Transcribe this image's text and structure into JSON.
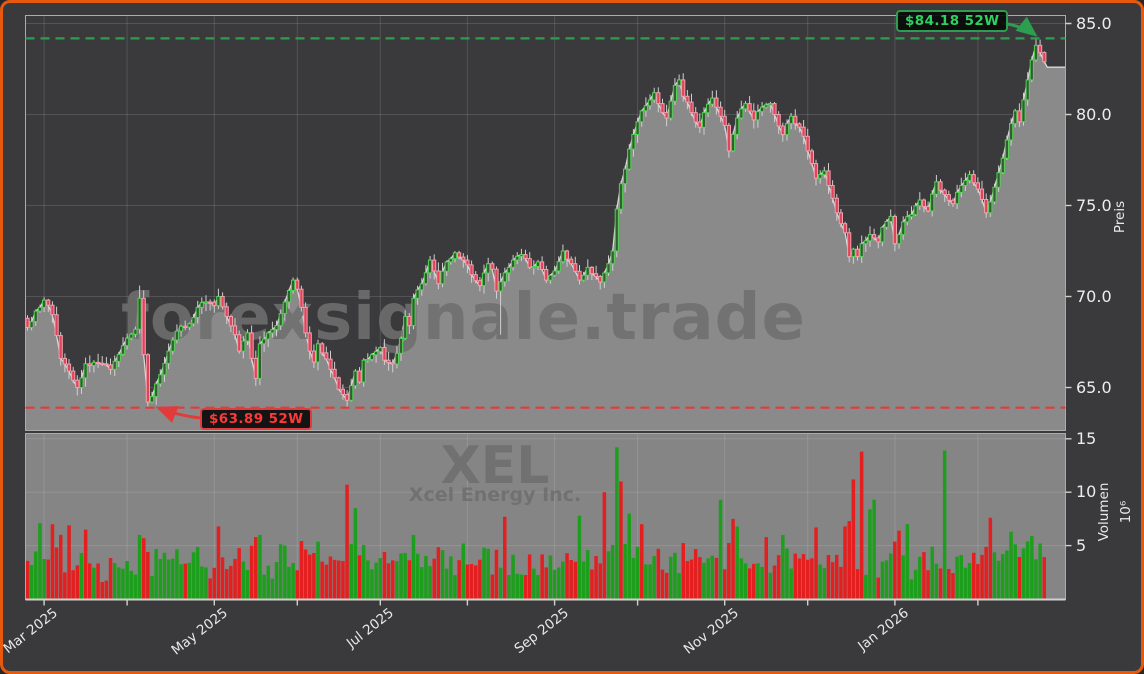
{
  "watermarks": {
    "site": "forexsignale.trade",
    "symbol": "XEL",
    "company": "Xcel Energy Inc."
  },
  "annotations": {
    "high": {
      "label": "$84.18 52W",
      "price": 84.18
    },
    "low": {
      "label": "$63.89 52W",
      "price": 63.89
    }
  },
  "axes": {
    "price": {
      "title": "Preis",
      "ticks": [
        65,
        70,
        75,
        80,
        85
      ],
      "tick_labels": [
        "65.0",
        "70.0",
        "75.0",
        "80.0",
        "85.0"
      ],
      "range": [
        62.6,
        85.4
      ]
    },
    "volume": {
      "title": "Volumen",
      "unit": "10⁶",
      "ticks": [
        5,
        10,
        15
      ],
      "tick_labels": [
        "5",
        "10",
        "15"
      ],
      "range": [
        0,
        15.5
      ]
    },
    "x": {
      "months": [
        {
          "day": 4,
          "label": "Mar 2025"
        },
        {
          "day": 24,
          "label": ""
        },
        {
          "day": 45,
          "label": "May 2025"
        },
        {
          "day": 65,
          "label": ""
        },
        {
          "day": 85,
          "label": "Jul 2025"
        },
        {
          "day": 106,
          "label": ""
        },
        {
          "day": 127,
          "label": "Sep 2025"
        },
        {
          "day": 147,
          "label": ""
        },
        {
          "day": 168,
          "label": "Nov 2025"
        },
        {
          "day": 188,
          "label": ""
        },
        {
          "day": 209,
          "label": "Jan 2026"
        },
        {
          "day": 229,
          "label": ""
        }
      ]
    }
  },
  "chart_data": {
    "type": "candlestick+volume",
    "title": "",
    "n_days": 246,
    "first_open": 68.8,
    "week52_high": 84.18,
    "week52_low": 63.89,
    "tail_price": 82.6,
    "close_anchors": [
      [
        0,
        68.3
      ],
      [
        2,
        69.2
      ],
      [
        4,
        69.8
      ],
      [
        6,
        69.0
      ],
      [
        8,
        66.6
      ],
      [
        10,
        65.9
      ],
      [
        12,
        65.0
      ],
      [
        14,
        66.3
      ],
      [
        18,
        66.3
      ],
      [
        20,
        66.0
      ],
      [
        23,
        67.3
      ],
      [
        26,
        68.2
      ],
      [
        27,
        69.9
      ],
      [
        28,
        66.8
      ],
      [
        29,
        64.2
      ],
      [
        30,
        64.5
      ],
      [
        32,
        65.7
      ],
      [
        34,
        67.0
      ],
      [
        36,
        68.1
      ],
      [
        39,
        68.5
      ],
      [
        41,
        69.4
      ],
      [
        43,
        69.7
      ],
      [
        45,
        69.5
      ],
      [
        46,
        70.0
      ],
      [
        48,
        68.9
      ],
      [
        50,
        67.9
      ],
      [
        51,
        67.0
      ],
      [
        53,
        68.0
      ],
      [
        54,
        66.6
      ],
      [
        55,
        65.5
      ],
      [
        56,
        67.4
      ],
      [
        58,
        68.0
      ],
      [
        60,
        68.4
      ],
      [
        62,
        69.7
      ],
      [
        64,
        70.9
      ],
      [
        65,
        70.4
      ],
      [
        66,
        69.4
      ],
      [
        67,
        68.0
      ],
      [
        68,
        67.0
      ],
      [
        69,
        66.4
      ],
      [
        70,
        67.4
      ],
      [
        71,
        66.9
      ],
      [
        73,
        66.0
      ],
      [
        75,
        64.9
      ],
      [
        77,
        64.3
      ],
      [
        78,
        65.1
      ],
      [
        79,
        65.9
      ],
      [
        80,
        65.3
      ],
      [
        81,
        66.5
      ],
      [
        83,
        66.8
      ],
      [
        85,
        67.2
      ],
      [
        86,
        66.5
      ],
      [
        88,
        66.3
      ],
      [
        90,
        67.7
      ],
      [
        91,
        68.9
      ],
      [
        92,
        68.4
      ],
      [
        93,
        69.9
      ],
      [
        95,
        70.7
      ],
      [
        96,
        71.3
      ],
      [
        97,
        72.0
      ],
      [
        98,
        71.4
      ],
      [
        99,
        70.7
      ],
      [
        101,
        71.9
      ],
      [
        103,
        72.4
      ],
      [
        105,
        72.0
      ],
      [
        107,
        71.2
      ],
      [
        109,
        70.6
      ],
      [
        111,
        71.8
      ],
      [
        112,
        71.5
      ],
      [
        113,
        70.3
      ],
      [
        115,
        71.3
      ],
      [
        117,
        72.0
      ],
      [
        119,
        72.3
      ],
      [
        121,
        71.6
      ],
      [
        123,
        71.9
      ],
      [
        125,
        70.9
      ],
      [
        127,
        71.4
      ],
      [
        129,
        72.5
      ],
      [
        131,
        71.8
      ],
      [
        133,
        70.9
      ],
      [
        135,
        71.6
      ],
      [
        137,
        71.1
      ],
      [
        138,
        70.8
      ],
      [
        140,
        71.8
      ],
      [
        141,
        72.5
      ],
      [
        142,
        74.8
      ],
      [
        143,
        76.2
      ],
      [
        144,
        77.0
      ],
      [
        145,
        78.1
      ],
      [
        146,
        78.9
      ],
      [
        147,
        79.6
      ],
      [
        148,
        80.2
      ],
      [
        150,
        80.8
      ],
      [
        151,
        81.2
      ],
      [
        152,
        80.6
      ],
      [
        154,
        79.8
      ],
      [
        156,
        81.6
      ],
      [
        157,
        81.9
      ],
      [
        158,
        81.0
      ],
      [
        160,
        80.1
      ],
      [
        162,
        79.3
      ],
      [
        163,
        80.1
      ],
      [
        165,
        80.9
      ],
      [
        166,
        80.4
      ],
      [
        168,
        79.4
      ],
      [
        169,
        78.0
      ],
      [
        171,
        79.8
      ],
      [
        173,
        80.6
      ],
      [
        175,
        79.7
      ],
      [
        177,
        80.4
      ],
      [
        179,
        80.6
      ],
      [
        180,
        80.0
      ],
      [
        182,
        78.9
      ],
      [
        184,
        79.9
      ],
      [
        186,
        79.3
      ],
      [
        187,
        78.8
      ],
      [
        188,
        78.0
      ],
      [
        189,
        77.3
      ],
      [
        190,
        76.5
      ],
      [
        192,
        76.9
      ],
      [
        193,
        76.1
      ],
      [
        194,
        75.4
      ],
      [
        195,
        74.6
      ],
      [
        196,
        74.0
      ],
      [
        197,
        73.5
      ],
      [
        198,
        72.2
      ],
      [
        199,
        72.6
      ],
      [
        200,
        72.2
      ],
      [
        201,
        72.9
      ],
      [
        203,
        73.4
      ],
      [
        205,
        73.0
      ],
      [
        206,
        73.8
      ],
      [
        208,
        74.4
      ],
      [
        209,
        72.9
      ],
      [
        210,
        73.4
      ],
      [
        211,
        74.1
      ],
      [
        213,
        74.5
      ],
      [
        215,
        75.3
      ],
      [
        217,
        74.7
      ],
      [
        219,
        76.3
      ],
      [
        221,
        75.6
      ],
      [
        223,
        75.1
      ],
      [
        225,
        76.1
      ],
      [
        227,
        76.7
      ],
      [
        229,
        75.9
      ],
      [
        231,
        74.6
      ],
      [
        232,
        75.2
      ],
      [
        233,
        76.0
      ],
      [
        234,
        76.8
      ],
      [
        235,
        77.6
      ],
      [
        236,
        78.6
      ],
      [
        237,
        79.5
      ],
      [
        238,
        80.2
      ],
      [
        239,
        79.6
      ],
      [
        240,
        80.8
      ],
      [
        241,
        81.9
      ],
      [
        242,
        83.0
      ],
      [
        243,
        83.8
      ],
      [
        244,
        83.4
      ],
      [
        245,
        82.9
      ]
    ],
    "low_wicks": [
      [
        29,
        63.89
      ],
      [
        114,
        67.9
      ]
    ],
    "high_wicks": [
      [
        27,
        70.6
      ],
      [
        243,
        84.18
      ]
    ],
    "volume_spikes": [
      [
        3,
        7.1,
        "g"
      ],
      [
        6,
        7.0,
        "r"
      ],
      [
        10,
        6.9,
        "r"
      ],
      [
        14,
        6.5,
        "r"
      ],
      [
        46,
        6.8,
        "r"
      ],
      [
        55,
        5.8,
        "r"
      ],
      [
        77,
        10.7,
        "r"
      ],
      [
        79,
        8.5,
        "g"
      ],
      [
        105,
        5.2,
        "g"
      ],
      [
        115,
        7.7,
        "r"
      ],
      [
        133,
        7.8,
        "g"
      ],
      [
        139,
        10.0,
        "r"
      ],
      [
        142,
        14.2,
        "g"
      ],
      [
        143,
        11.0,
        "r"
      ],
      [
        145,
        8.0,
        "g"
      ],
      [
        148,
        7.0,
        "r"
      ],
      [
        167,
        9.3,
        "g"
      ],
      [
        170,
        7.5,
        "r"
      ],
      [
        171,
        6.8,
        "g"
      ],
      [
        178,
        5.8,
        "r"
      ],
      [
        182,
        6.0,
        "g"
      ],
      [
        190,
        6.7,
        "r"
      ],
      [
        197,
        6.8,
        "r"
      ],
      [
        198,
        7.3,
        "r"
      ],
      [
        199,
        11.2,
        "r"
      ],
      [
        201,
        13.8,
        "r"
      ],
      [
        203,
        8.4,
        "g"
      ],
      [
        204,
        9.3,
        "g"
      ],
      [
        210,
        6.4,
        "r"
      ],
      [
        212,
        7.0,
        "g"
      ],
      [
        221,
        13.9,
        "g"
      ],
      [
        232,
        7.6,
        "r"
      ],
      [
        237,
        6.3,
        "g"
      ],
      [
        241,
        5.4,
        "g"
      ],
      [
        244,
        5.2,
        "g"
      ]
    ]
  },
  "colors": {
    "frame_border": "#e8590c",
    "background": "#3a3a3c",
    "panel_gray": "#858585",
    "area_fill": "#8a8a8a",
    "area_line": "#d9d9d9",
    "grid": "rgba(255,255,255,0.13)",
    "spine": "#ababab",
    "axis_line": "#d0d0d0",
    "candle_up_fill": "#355c35",
    "candle_up_stroke": "#54d154",
    "candle_down_fill": "#e04458",
    "candle_down_stroke": "#f2a0b0",
    "wick": "#cfcfcf",
    "vol_up": "#1d9e1d",
    "vol_down": "#e41f1f",
    "line_high": "#2d9e4f",
    "text_high": "#2fd060",
    "line_low": "#e23b3b",
    "text_low": "#ff3838",
    "watermark": "#6f6f6f"
  }
}
